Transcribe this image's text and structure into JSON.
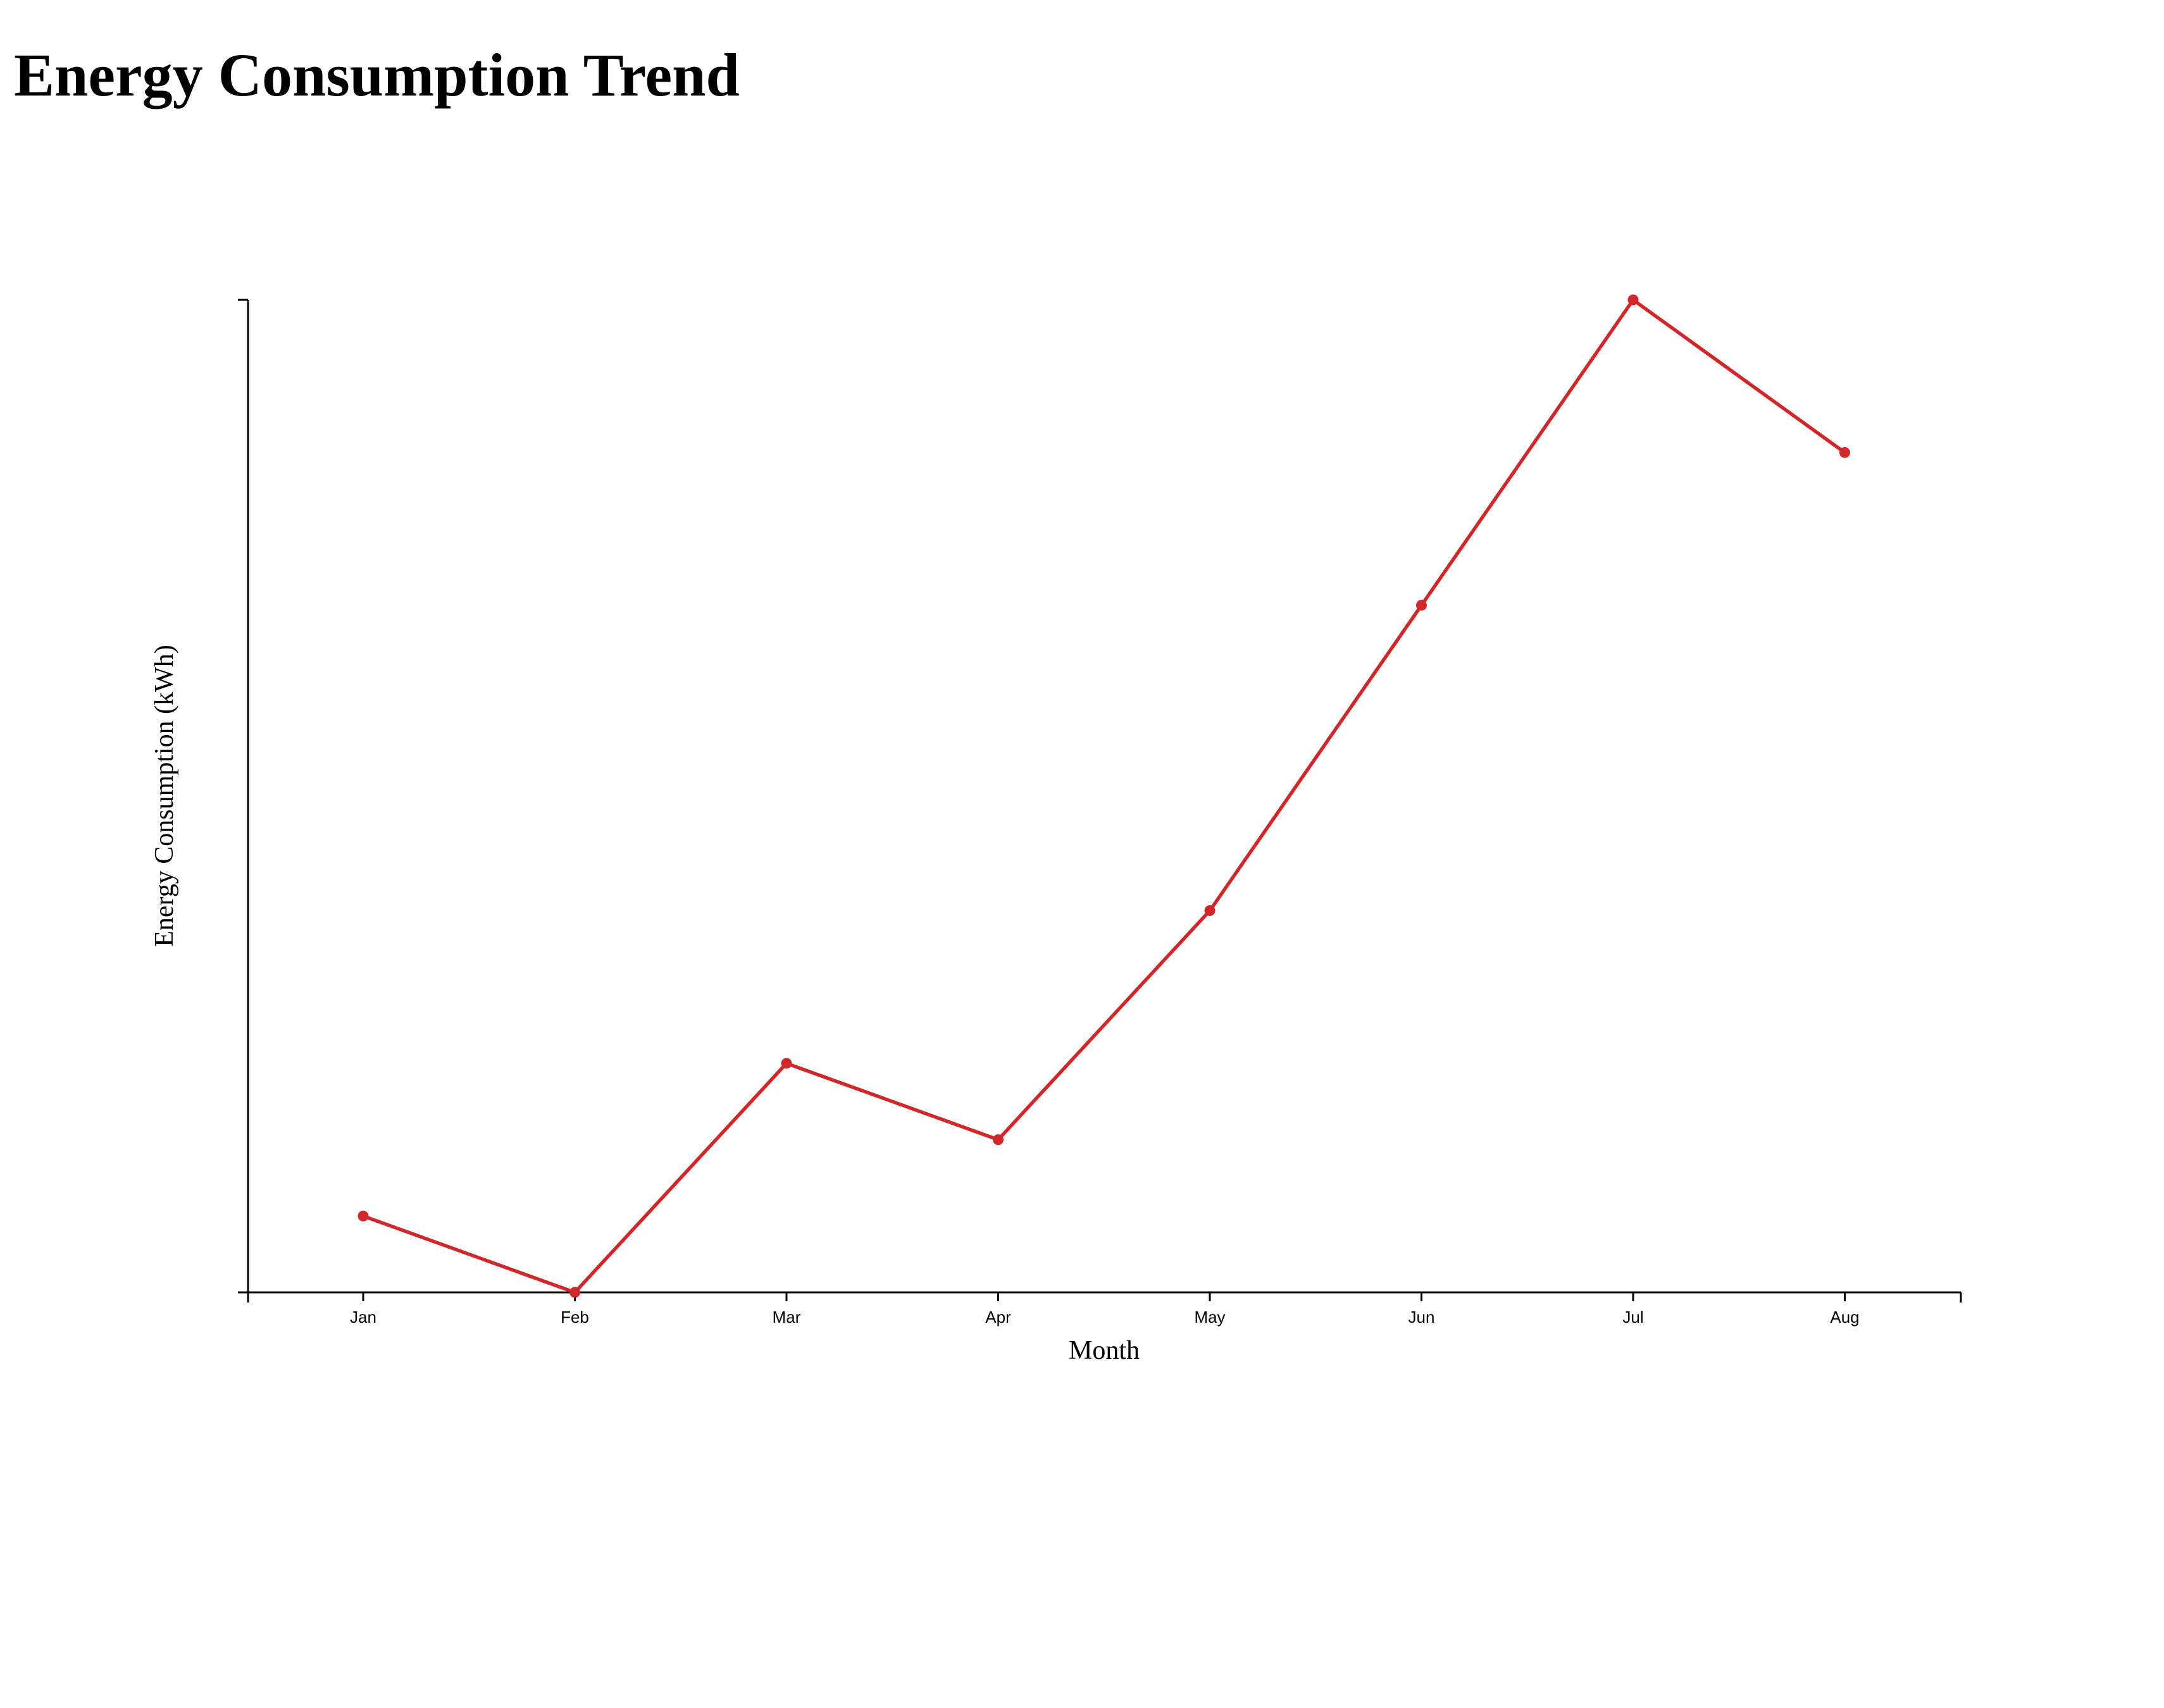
{
  "page": {
    "title": "Energy Consumption Trend"
  },
  "chart_data": {
    "type": "line",
    "title": "Energy Consumption Trend",
    "xlabel": "Month",
    "ylabel": "Energy Consumption (kWh)",
    "categories": [
      "Jan",
      "Feb",
      "Mar",
      "Apr",
      "May",
      "Jun",
      "Jul",
      "Aug"
    ],
    "series": [
      {
        "values": [
          105,
          100,
          115,
          110,
          125,
          145,
          165,
          155
        ]
      }
    ],
    "ylim": [
      100,
      165
    ],
    "y_tick_labels": "none",
    "grid": false,
    "legend": "none",
    "line_color": "#d0282a",
    "marker_color": "#d0282a"
  }
}
